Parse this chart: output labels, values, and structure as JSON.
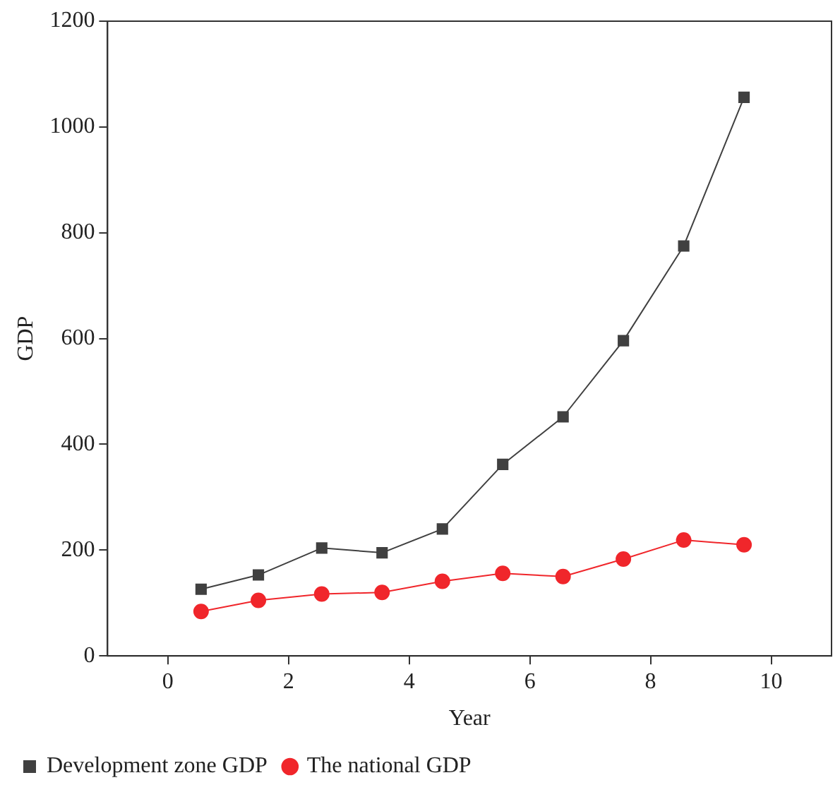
{
  "chart_data": {
    "type": "line",
    "xlabel": "Year",
    "ylabel": "GDP",
    "xlim": [
      -1,
      11
    ],
    "xticks": [
      0,
      2,
      4,
      6,
      8,
      10
    ],
    "ylim": [
      0,
      1200
    ],
    "yticks": [
      0,
      200,
      400,
      600,
      800,
      1000,
      1200
    ],
    "grid": false,
    "legend": "bottom",
    "series": [
      {
        "name": "Development zone GDP",
        "color": "#404040",
        "marker": "square",
        "x": [
          0.55,
          1.5,
          2.55,
          3.55,
          4.55,
          5.55,
          6.55,
          7.55,
          8.55,
          9.55
        ],
        "values": [
          126,
          153,
          204,
          195,
          240,
          362,
          452,
          596,
          775,
          1056
        ]
      },
      {
        "name": "The national GDP",
        "color": "#f0262b",
        "marker": "circle",
        "x": [
          0.55,
          1.5,
          2.55,
          3.55,
          4.55,
          5.55,
          6.55,
          7.55,
          8.55,
          9.55
        ],
        "values": [
          84,
          105,
          117,
          120,
          141,
          156,
          150,
          183,
          219,
          210
        ]
      }
    ]
  }
}
